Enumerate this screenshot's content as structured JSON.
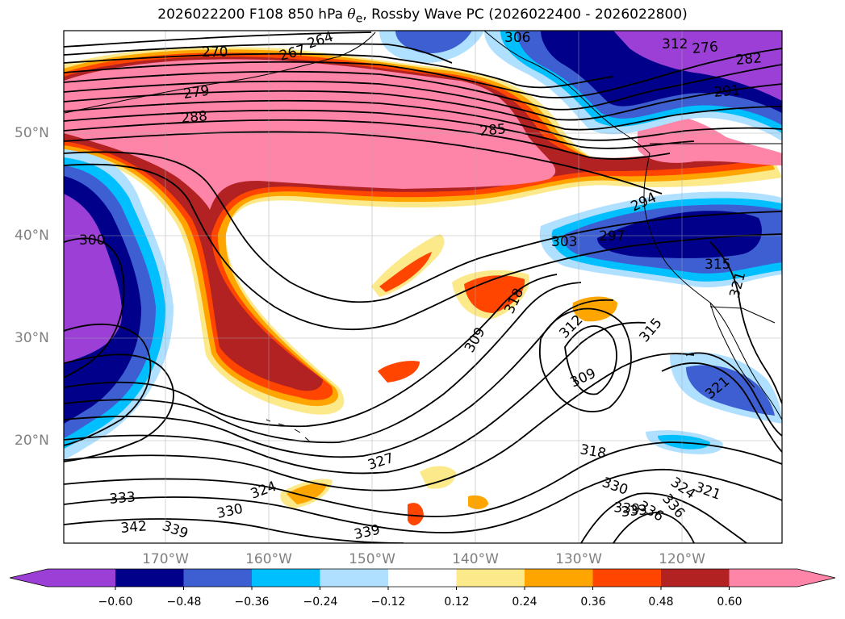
{
  "title": {
    "prefix": "2026022200 F108 850 hPa ",
    "theta_symbol": "θ",
    "theta_sub": "e",
    "suffix": ", Rossby Wave PC (2026022400 - 2026022800)"
  },
  "lat_labels": [
    "50°N",
    "40°N",
    "30°N",
    "20°N"
  ],
  "lon_labels": [
    "170°W",
    "160°W",
    "150°W",
    "140°W",
    "130°W",
    "120°W"
  ],
  "colorbar": {
    "colors": [
      "#9c3fd6",
      "#00008b",
      "#3d5fd1",
      "#00bfff",
      "#b0e0ff",
      "#ffffff",
      "#fce98a",
      "#ffa500",
      "#ff4500",
      "#b22222",
      "#ff85a8"
    ],
    "tick_labels": [
      "−0.60",
      "−0.48",
      "−0.36",
      "−0.24",
      "−0.12",
      "0.12",
      "0.24",
      "0.36",
      "0.48",
      "0.60"
    ]
  },
  "contour_labels": [
    "276",
    "282",
    "291",
    "270",
    "264",
    "267",
    "279",
    "288",
    "285",
    "300",
    "303",
    "297",
    "294",
    "315",
    "321",
    "318",
    "309",
    "312",
    "315",
    "309",
    "321",
    "318",
    "327",
    "324",
    "330",
    "333",
    "336",
    "339",
    "342",
    "339",
    "330",
    "324",
    "321",
    "333",
    "339",
    "336",
    "306",
    "312"
  ]
}
